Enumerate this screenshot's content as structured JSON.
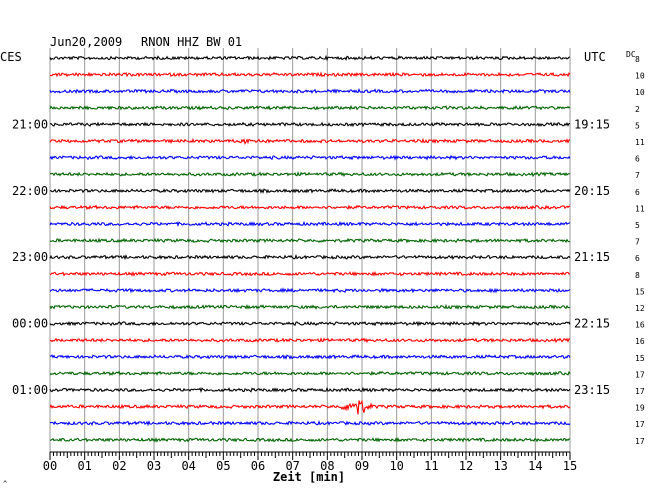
{
  "header": {
    "date": "Jun20,2009",
    "station": "RNON HHZ BW 01",
    "left_tz": "CES",
    "right_tz": "UTC",
    "dc_label": "DC"
  },
  "chart_data": {
    "type": "line",
    "title": "Jun20,2009   RNON HHZ BW 01",
    "xlabel": "Zeit [min]",
    "xlim": [
      0,
      15
    ],
    "x_ticks": [
      "00",
      "01",
      "02",
      "03",
      "04",
      "05",
      "06",
      "07",
      "08",
      "09",
      "10",
      "11",
      "12",
      "13",
      "14",
      "15"
    ],
    "trace_colors": [
      "#000000",
      "#ff0000",
      "#0000ff",
      "#006400"
    ],
    "rows": 24,
    "left_time_labels": [
      {
        "row": 4,
        "label": "21:00"
      },
      {
        "row": 8,
        "label": "22:00"
      },
      {
        "row": 12,
        "label": "23:00"
      },
      {
        "row": 16,
        "label": "00:00"
      },
      {
        "row": 20,
        "label": "01:00"
      }
    ],
    "right_time_labels": [
      {
        "row": 4,
        "label": "19:15"
      },
      {
        "row": 8,
        "label": "20:15"
      },
      {
        "row": 12,
        "label": "21:15"
      },
      {
        "row": 16,
        "label": "22:15"
      },
      {
        "row": 20,
        "label": "23:15"
      }
    ],
    "dc_offsets": [
      8,
      10,
      10,
      2,
      5,
      11,
      6,
      7,
      6,
      11,
      5,
      7,
      6,
      8,
      15,
      12,
      16,
      16,
      15,
      17,
      17,
      19,
      17,
      17
    ],
    "events": [
      {
        "row": 5,
        "minute": 5.8,
        "amplitude": 1.4
      },
      {
        "row": 21,
        "minute": 8.85,
        "amplitude": 8
      }
    ],
    "grid": true
  }
}
